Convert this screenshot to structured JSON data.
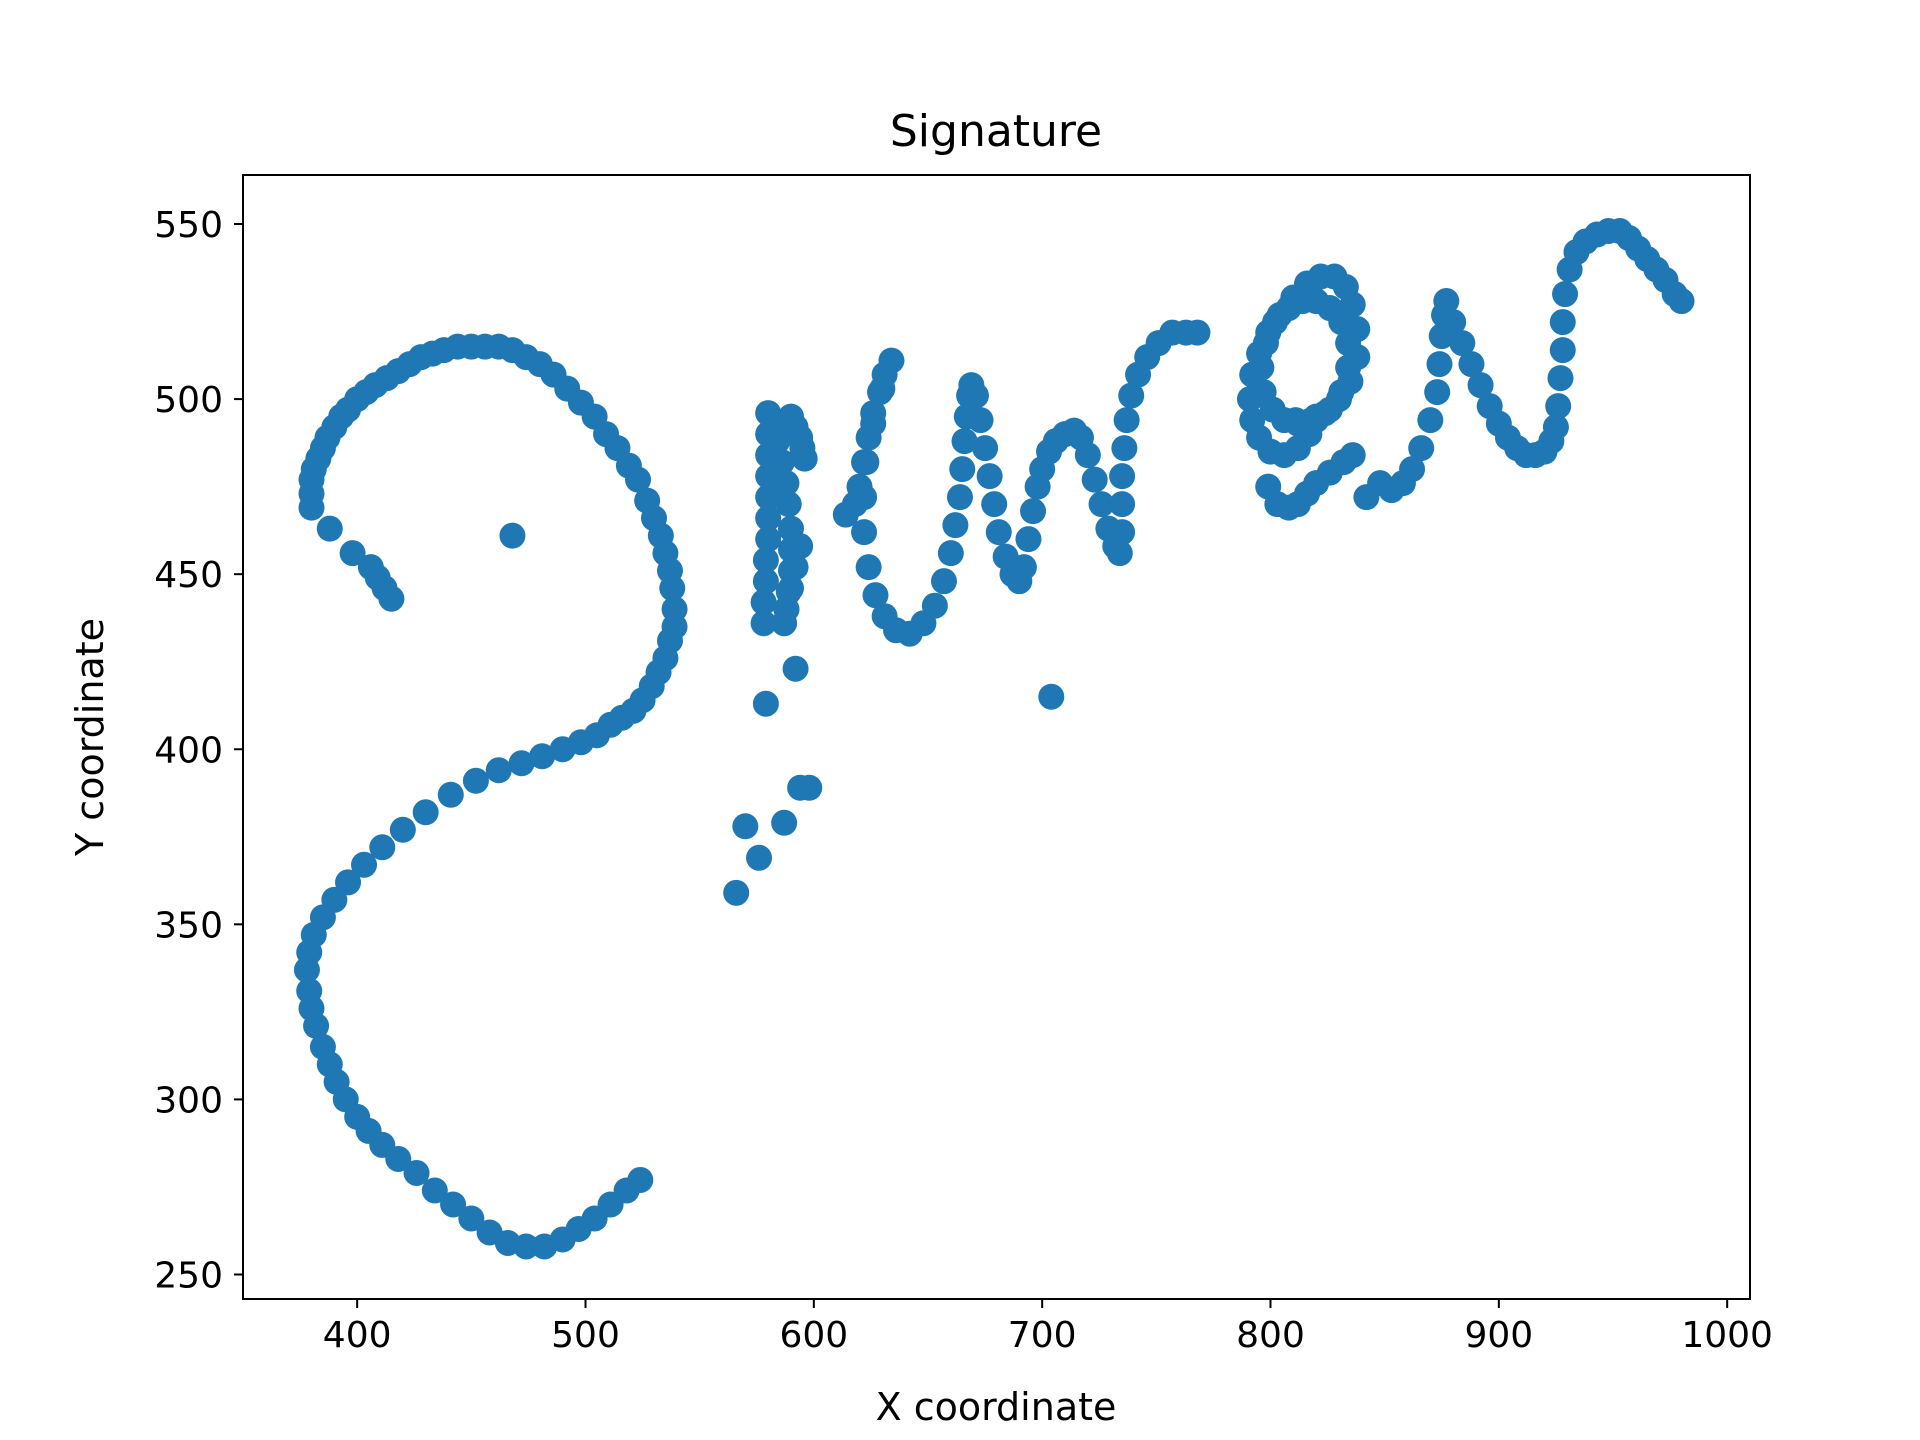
{
  "chart_data": {
    "type": "scatter",
    "title": "Signature",
    "xlabel": "X coordinate",
    "ylabel": "Y coordinate",
    "xlim": [
      350,
      1010
    ],
    "ylim": [
      243,
      564
    ],
    "xticks": [
      400,
      500,
      600,
      700,
      800,
      900,
      1000
    ],
    "yticks": [
      250,
      300,
      350,
      400,
      450,
      500,
      550
    ],
    "grid": false,
    "marker_color": "#1f77b4",
    "strokes": [
      [
        [
          415,
          443
        ],
        [
          412,
          446
        ],
        [
          409,
          449
        ],
        [
          406,
          452
        ],
        [
          398,
          456
        ],
        [
          388,
          463
        ]
      ],
      [
        [
          380,
          469
        ],
        [
          380,
          473
        ],
        [
          380,
          477
        ],
        [
          381,
          480
        ],
        [
          383,
          483
        ],
        [
          385,
          486
        ],
        [
          387,
          489
        ],
        [
          390,
          492
        ],
        [
          393,
          495
        ],
        [
          396,
          497
        ],
        [
          400,
          500
        ],
        [
          404,
          502
        ],
        [
          408,
          504
        ],
        [
          413,
          506
        ],
        [
          418,
          508
        ],
        [
          423,
          510
        ],
        [
          428,
          512
        ],
        [
          433,
          513
        ],
        [
          438,
          514
        ],
        [
          444,
          515
        ],
        [
          450,
          515
        ],
        [
          456,
          515
        ],
        [
          462,
          515
        ],
        [
          468,
          514
        ],
        [
          474,
          512
        ],
        [
          480,
          510
        ],
        [
          486,
          507
        ],
        [
          492,
          503
        ],
        [
          498,
          499
        ],
        [
          504,
          495
        ],
        [
          509,
          490
        ],
        [
          514,
          486
        ],
        [
          519,
          481
        ],
        [
          523,
          477
        ],
        [
          527,
          471
        ],
        [
          530,
          466
        ],
        [
          533,
          461
        ],
        [
          535,
          456
        ],
        [
          537,
          451
        ],
        [
          538,
          446
        ],
        [
          539,
          440
        ],
        [
          539,
          435
        ],
        [
          537,
          431
        ],
        [
          535,
          426
        ],
        [
          532,
          422
        ],
        [
          529,
          418
        ],
        [
          525,
          414
        ],
        [
          521,
          411
        ],
        [
          516,
          409
        ],
        [
          511,
          407
        ],
        [
          505,
          404
        ],
        [
          498,
          402
        ],
        [
          490,
          400
        ],
        [
          481,
          398
        ],
        [
          472,
          396
        ],
        [
          462,
          394
        ],
        [
          452,
          391
        ],
        [
          441,
          387
        ],
        [
          430,
          382
        ],
        [
          420,
          377
        ],
        [
          411,
          372
        ],
        [
          403,
          367
        ],
        [
          396,
          362
        ],
        [
          390,
          357
        ],
        [
          385,
          352
        ],
        [
          381,
          347
        ],
        [
          379,
          342
        ],
        [
          378,
          337
        ],
        [
          379,
          331
        ],
        [
          380,
          326
        ],
        [
          382,
          321
        ],
        [
          385,
          315
        ],
        [
          388,
          310
        ],
        [
          391,
          305
        ],
        [
          395,
          300
        ],
        [
          400,
          295
        ],
        [
          405,
          291
        ],
        [
          411,
          287
        ],
        [
          418,
          283
        ],
        [
          426,
          279
        ],
        [
          434,
          274
        ],
        [
          442,
          270
        ],
        [
          450,
          266
        ],
        [
          458,
          262
        ],
        [
          466,
          259
        ],
        [
          474,
          258
        ],
        [
          482,
          258
        ],
        [
          490,
          260
        ],
        [
          497,
          263
        ],
        [
          504,
          266
        ],
        [
          511,
          270
        ],
        [
          518,
          274
        ],
        [
          524,
          277
        ]
      ],
      [
        [
          468,
          461
        ]
      ],
      [
        [
          566,
          359
        ],
        [
          570,
          378
        ],
        [
          576,
          369
        ],
        [
          579,
          413
        ],
        [
          587,
          379
        ],
        [
          592,
          423
        ],
        [
          594,
          389
        ],
        [
          598,
          389
        ]
      ],
      [
        [
          578,
          436
        ],
        [
          578,
          442
        ],
        [
          579,
          448
        ],
        [
          579,
          454
        ],
        [
          580,
          460
        ],
        [
          580,
          466
        ],
        [
          580,
          472
        ],
        [
          580,
          478
        ],
        [
          580,
          484
        ],
        [
          580,
          490
        ],
        [
          580,
          496
        ],
        [
          582,
          492
        ],
        [
          584,
          488
        ],
        [
          586,
          482
        ],
        [
          588,
          476
        ],
        [
          589,
          470
        ],
        [
          590,
          463
        ],
        [
          590,
          457
        ],
        [
          590,
          451
        ],
        [
          589,
          445
        ],
        [
          588,
          440
        ],
        [
          587,
          436
        ],
        [
          588,
          440
        ],
        [
          590,
          446
        ],
        [
          592,
          452
        ],
        [
          594,
          458
        ]
      ],
      [
        [
          590,
          495
        ],
        [
          592,
          492
        ],
        [
          594,
          489
        ],
        [
          595,
          486
        ],
        [
          596,
          483
        ]
      ],
      [
        [
          614,
          467
        ],
        [
          618,
          470
        ],
        [
          620,
          475
        ],
        [
          622,
          482
        ],
        [
          624,
          489
        ],
        [
          626,
          496
        ],
        [
          629,
          502
        ],
        [
          631,
          507
        ],
        [
          634,
          511
        ],
        [
          630,
          503
        ],
        [
          626,
          493
        ],
        [
          623,
          482
        ],
        [
          622,
          472
        ],
        [
          622,
          462
        ],
        [
          624,
          452
        ],
        [
          627,
          444
        ],
        [
          631,
          438
        ],
        [
          636,
          434
        ],
        [
          642,
          433
        ],
        [
          648,
          436
        ],
        [
          653,
          441
        ],
        [
          657,
          448
        ],
        [
          660,
          456
        ],
        [
          662,
          464
        ],
        [
          664,
          472
        ],
        [
          665,
          480
        ],
        [
          666,
          488
        ],
        [
          667,
          495
        ],
        [
          668,
          501
        ],
        [
          669,
          504
        ],
        [
          671,
          501
        ],
        [
          673,
          494
        ],
        [
          675,
          486
        ],
        [
          677,
          478
        ],
        [
          679,
          470
        ],
        [
          681,
          462
        ],
        [
          684,
          455
        ],
        [
          687,
          450
        ],
        [
          690,
          448
        ],
        [
          692,
          452
        ],
        [
          694,
          460
        ],
        [
          696,
          468
        ],
        [
          698,
          475
        ],
        [
          700,
          480
        ],
        [
          703,
          485
        ],
        [
          706,
          488
        ],
        [
          710,
          490
        ],
        [
          714,
          491
        ],
        [
          717,
          489
        ],
        [
          720,
          484
        ],
        [
          723,
          477
        ],
        [
          726,
          470
        ],
        [
          729,
          463
        ],
        [
          732,
          458
        ],
        [
          734,
          456
        ],
        [
          735,
          462
        ],
        [
          735,
          470
        ],
        [
          735,
          478
        ],
        [
          736,
          486
        ],
        [
          737,
          494
        ],
        [
          739,
          501
        ],
        [
          742,
          507
        ],
        [
          746,
          512
        ],
        [
          751,
          516
        ],
        [
          757,
          519
        ],
        [
          763,
          519
        ],
        [
          768,
          519
        ]
      ],
      [
        [
          704,
          415
        ]
      ],
      [
        [
          820,
          495
        ],
        [
          817,
          490
        ],
        [
          812,
          486
        ],
        [
          806,
          484
        ],
        [
          800,
          485
        ],
        [
          795,
          489
        ],
        [
          792,
          494
        ],
        [
          791,
          500
        ],
        [
          792,
          507
        ],
        [
          795,
          513
        ],
        [
          799,
          519
        ],
        [
          804,
          524
        ],
        [
          810,
          529
        ],
        [
          816,
          533
        ],
        [
          822,
          535
        ],
        [
          828,
          535
        ],
        [
          833,
          532
        ],
        [
          836,
          527
        ],
        [
          838,
          520
        ],
        [
          838,
          512
        ],
        [
          835,
          505
        ],
        [
          830,
          500
        ],
        [
          824,
          496
        ],
        [
          818,
          494
        ],
        [
          812,
          493
        ],
        [
          806,
          494
        ],
        [
          801,
          497
        ],
        [
          797,
          502
        ],
        [
          796,
          509
        ],
        [
          798,
          516
        ],
        [
          802,
          522
        ],
        [
          808,
          526
        ],
        [
          814,
          528
        ],
        [
          820,
          528
        ],
        [
          826,
          526
        ],
        [
          831,
          522
        ],
        [
          834,
          516
        ],
        [
          834,
          509
        ],
        [
          831,
          502
        ],
        [
          826,
          497
        ],
        [
          820,
          494
        ]
      ],
      [
        [
          799,
          475
        ],
        [
          803,
          470
        ],
        [
          808,
          469
        ],
        [
          812,
          470
        ],
        [
          816,
          473
        ],
        [
          820,
          476
        ],
        [
          826,
          479
        ],
        [
          832,
          482
        ],
        [
          836,
          484
        ]
      ],
      [
        [
          811,
          494
        ]
      ],
      [
        [
          842,
          472
        ]
      ],
      [
        [
          848,
          476
        ],
        [
          853,
          474
        ],
        [
          858,
          476
        ],
        [
          862,
          480
        ],
        [
          866,
          486
        ],
        [
          870,
          494
        ],
        [
          873,
          502
        ],
        [
          874,
          510
        ],
        [
          875,
          518
        ],
        [
          876,
          524
        ],
        [
          877,
          528
        ],
        [
          880,
          522
        ],
        [
          884,
          516
        ],
        [
          888,
          510
        ],
        [
          892,
          504
        ],
        [
          896,
          498
        ],
        [
          900,
          493
        ],
        [
          904,
          489
        ],
        [
          908,
          486
        ],
        [
          912,
          484
        ],
        [
          916,
          484
        ],
        [
          920,
          485
        ],
        [
          923,
          488
        ],
        [
          925,
          492
        ],
        [
          926,
          498
        ],
        [
          927,
          506
        ],
        [
          928,
          514
        ],
        [
          928,
          522
        ],
        [
          929,
          530
        ],
        [
          931,
          537
        ],
        [
          934,
          542
        ],
        [
          938,
          545
        ],
        [
          943,
          547
        ],
        [
          948,
          548
        ],
        [
          953,
          548
        ],
        [
          957,
          546
        ],
        [
          961,
          543
        ],
        [
          965,
          540
        ],
        [
          969,
          537
        ],
        [
          973,
          534
        ],
        [
          977,
          530
        ],
        [
          980,
          528
        ]
      ]
    ]
  }
}
